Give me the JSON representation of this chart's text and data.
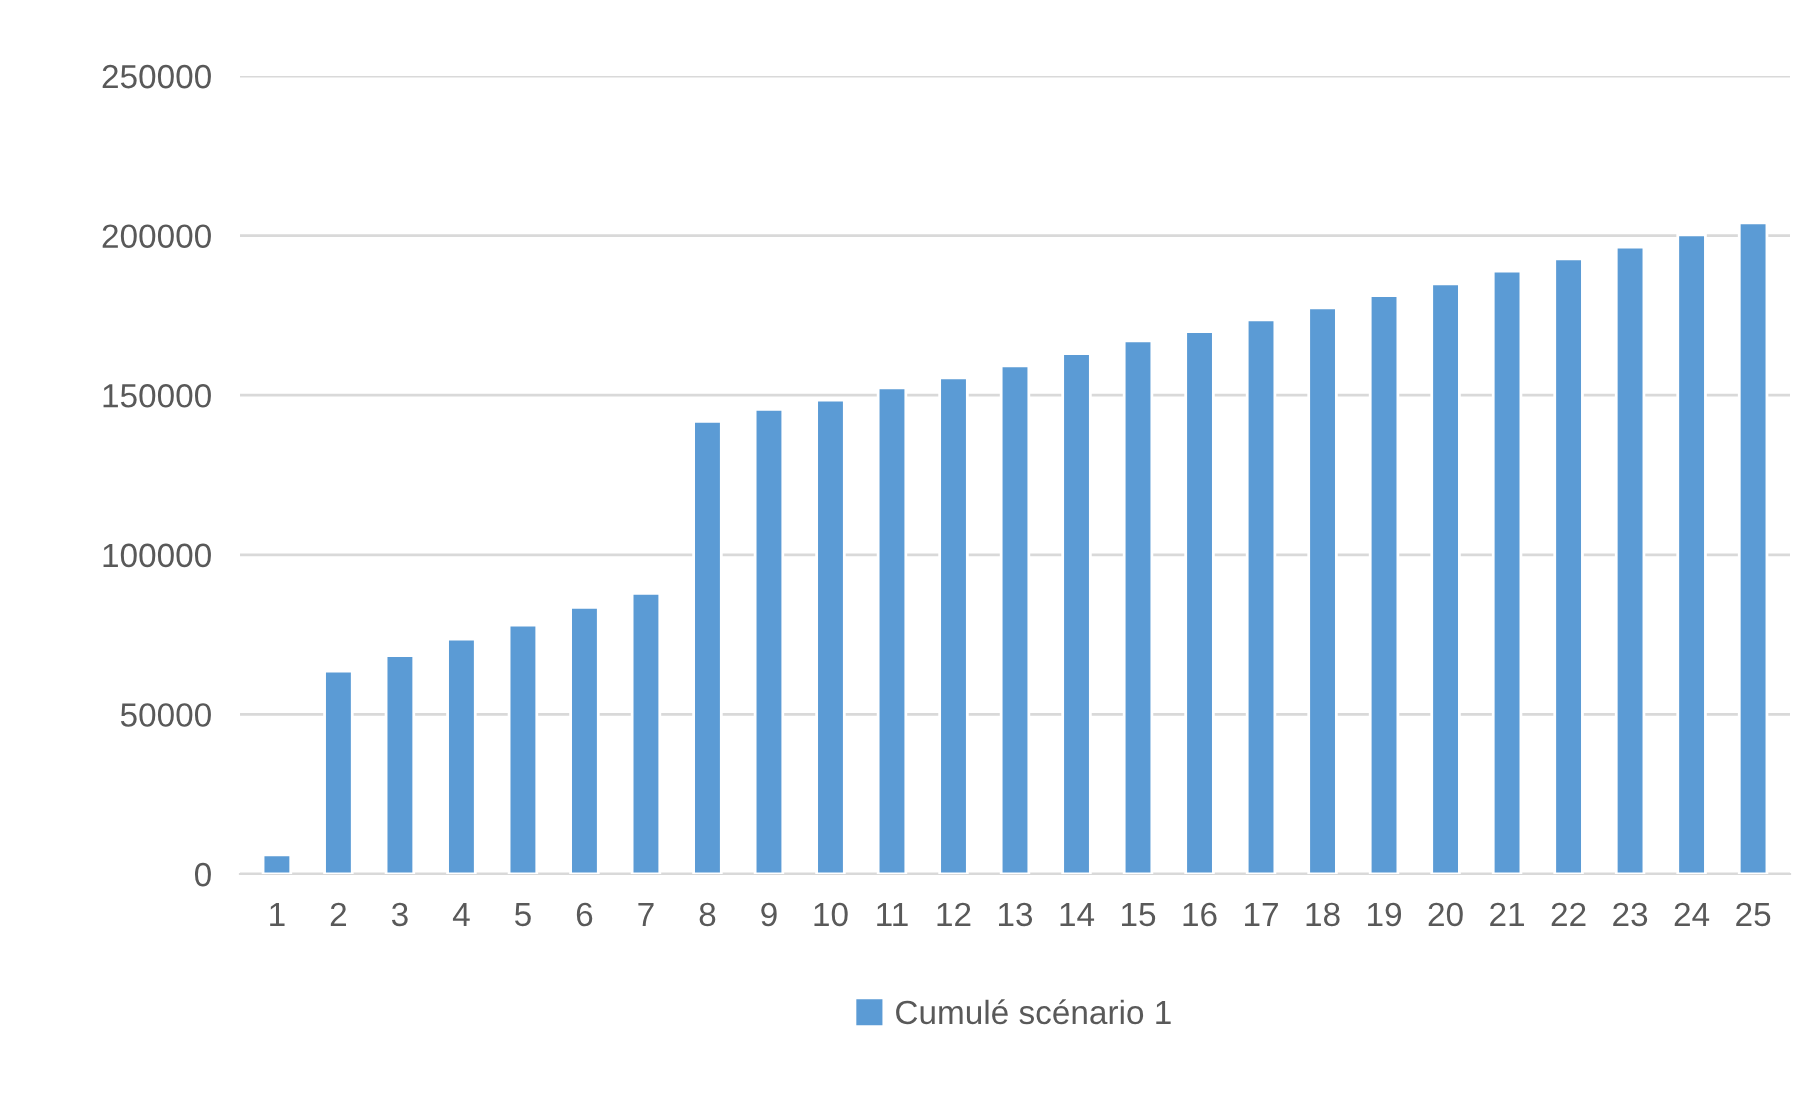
{
  "chart_data": {
    "type": "bar",
    "categories": [
      "1",
      "2",
      "3",
      "4",
      "5",
      "6",
      "7",
      "8",
      "9",
      "10",
      "11",
      "12",
      "13",
      "14",
      "15",
      "16",
      "17",
      "18",
      "19",
      "20",
      "21",
      "22",
      "23",
      "24",
      "25"
    ],
    "series": [
      {
        "name": "Cumulé scénario 1",
        "color": "#5b9bd5",
        "values": [
          6000,
          63600,
          68400,
          73600,
          78000,
          83500,
          87900,
          141800,
          145600,
          148500,
          152300,
          155400,
          159200,
          163000,
          167000,
          169900,
          173600,
          177400,
          181200,
          184900,
          188900,
          192700,
          196400,
          200200,
          204000
        ]
      }
    ],
    "ylim": [
      0,
      250000
    ],
    "yticks": [
      0,
      50000,
      100000,
      150000,
      200000,
      250000
    ],
    "grid": "y",
    "legend": "bottom"
  }
}
